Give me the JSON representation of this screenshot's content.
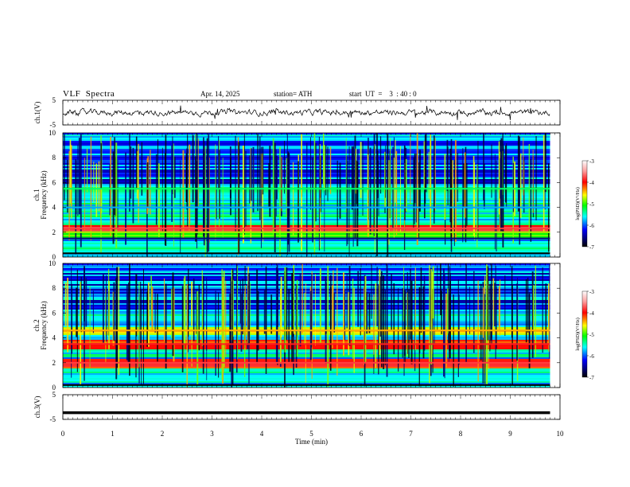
{
  "header": {
    "title": "VLF  Spectra",
    "date": "Apr. 14, 2025",
    "station": "station= ATH",
    "start": "start  UT  =    3  : 40 : 0"
  },
  "colorbar": {
    "label": "log(PSD)(V²/Hz)",
    "ticks": [
      "-3",
      "-4",
      "-5",
      "-6",
      "-7"
    ]
  },
  "chart_data": [
    {
      "type": "line",
      "name": "ch1-waveform",
      "ylabel": "ch.1(V)",
      "ylim": [
        -5,
        5
      ],
      "yticks": [
        "5",
        "-5"
      ],
      "x_range_min": [
        0,
        9.8
      ]
    },
    {
      "type": "heatmap",
      "name": "ch1-spectrogram",
      "ylabel": "ch.1\nFrequency (kHz)",
      "ylim": [
        0,
        10
      ],
      "yticks": [
        "0",
        "2",
        "4",
        "6",
        "8",
        "10"
      ],
      "zlim": [
        -7,
        -3
      ],
      "bands_khz": [
        {
          "f": 0.3,
          "level": -7
        },
        {
          "f": 1.5,
          "level": -6.6
        },
        {
          "f": 2.0,
          "level": -4.8
        },
        {
          "f": 2.3,
          "level": -3.8
        },
        {
          "f": 4.0,
          "level": -5.8
        },
        {
          "f": 5.5,
          "level": -5.3
        }
      ]
    },
    {
      "type": "heatmap",
      "name": "ch2-spectrogram",
      "ylabel": "ch.2\nFrequency (kHz)",
      "ylim": [
        0,
        10
      ],
      "yticks": [
        "0",
        "2",
        "4",
        "6",
        "8",
        "10"
      ],
      "zlim": [
        -7,
        -3
      ],
      "bands_khz": [
        {
          "f": 0.2,
          "level": -7
        },
        {
          "f": 2.0,
          "level": -3.8
        },
        {
          "f": 3.5,
          "level": -3.9
        },
        {
          "f": 4.6,
          "level": -4.4
        }
      ]
    },
    {
      "type": "line",
      "name": "ch3-waveform",
      "ylabel": "ch.3(V)",
      "ylim": [
        -5,
        5
      ],
      "yticks": [
        "5",
        "-5"
      ],
      "xlabel": "Time  (min)",
      "xticks": [
        "0",
        "1",
        "2",
        "3",
        "4",
        "5",
        "6",
        "7",
        "8",
        "9",
        "10"
      ],
      "xlim": [
        0,
        10
      ],
      "level_v": -2.3
    }
  ]
}
